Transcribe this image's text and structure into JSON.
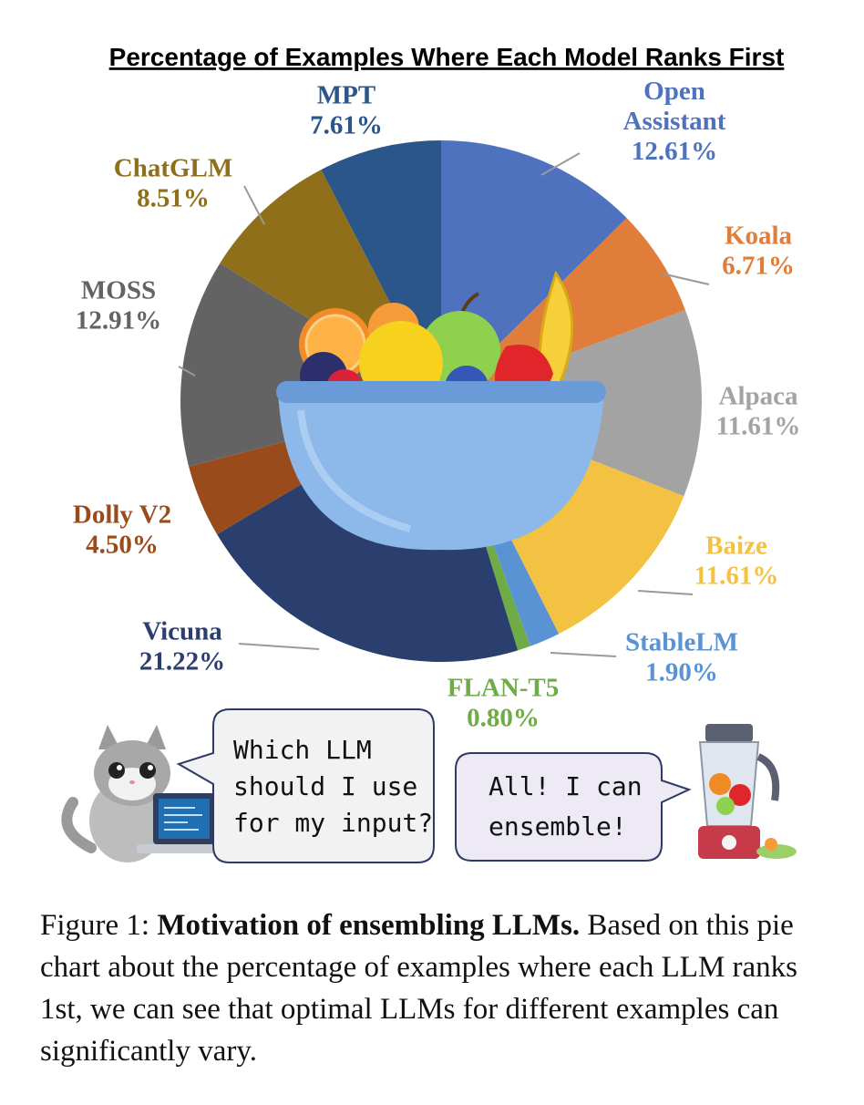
{
  "chart_data": {
    "type": "pie",
    "title": "Percentage of Examples Where Each Model Ranks First",
    "unit": "%",
    "slices": [
      {
        "label": "Open Assistant",
        "label_lines": [
          "Open",
          "Assistant"
        ],
        "value": 12.61,
        "value_text": "12.61%",
        "color": "#4f72bf",
        "label_color": "#4f72bf"
      },
      {
        "label": "Koala",
        "label_lines": [
          "Koala"
        ],
        "value": 6.71,
        "value_text": "6.71%",
        "color": "#e07d3a",
        "label_color": "#e07d3a"
      },
      {
        "label": "Alpaca",
        "label_lines": [
          "Alpaca"
        ],
        "value": 11.61,
        "value_text": "11.61%",
        "color": "#a3a3a3",
        "label_color": "#a3a3a3"
      },
      {
        "label": "Baize",
        "label_lines": [
          "Baize"
        ],
        "value": 11.61,
        "value_text": "11.61%",
        "color": "#f4c242",
        "label_color": "#f4c242"
      },
      {
        "label": "StableLM",
        "label_lines": [
          "StableLM"
        ],
        "value": 1.9,
        "value_text": "1.90%",
        "color": "#5a93d4",
        "label_color": "#5a93d4"
      },
      {
        "label": "FLAN-T5",
        "label_lines": [
          "FLAN-T5"
        ],
        "value": 0.8,
        "value_text": "0.80%",
        "color": "#6fab46",
        "label_color": "#6fab46"
      },
      {
        "label": "Vicuna",
        "label_lines": [
          "Vicuna"
        ],
        "value": 21.22,
        "value_text": "21.22%",
        "color": "#2a3f6e",
        "label_color": "#2a3f6e"
      },
      {
        "label": "Dolly V2",
        "label_lines": [
          "Dolly V2"
        ],
        "value": 4.5,
        "value_text": "4.50%",
        "color": "#9a4b1c",
        "label_color": "#9a4b1c"
      },
      {
        "label": "MOSS",
        "label_lines": [
          "MOSS"
        ],
        "value": 12.91,
        "value_text": "12.91%",
        "color": "#636363",
        "label_color": "#636363"
      },
      {
        "label": "ChatGLM",
        "label_lines": [
          "ChatGLM"
        ],
        "value": 8.51,
        "value_text": "8.51%",
        "color": "#8f6f1a",
        "label_color": "#8f6f1a"
      },
      {
        "label": "MPT",
        "label_lines": [
          "MPT"
        ],
        "value": 7.61,
        "value_text": "7.61%",
        "color": "#2b568a",
        "label_color": "#2b568a"
      }
    ]
  },
  "illustration": {
    "center_picture": "fruit-bowl",
    "cat_bubble_lines": [
      "Which LLM",
      "should I use",
      "for my input?"
    ],
    "blender_bubble_lines": [
      "All! I can",
      "ensemble!"
    ]
  },
  "caption": {
    "prefix": "Figure 1: ",
    "bold": "Motivation of ensembling LLMs.",
    "text": " Based on this pie chart about the percentage of examples where each LLM ranks 1st, we can see that optimal LLMs for different examples can significantly vary."
  }
}
